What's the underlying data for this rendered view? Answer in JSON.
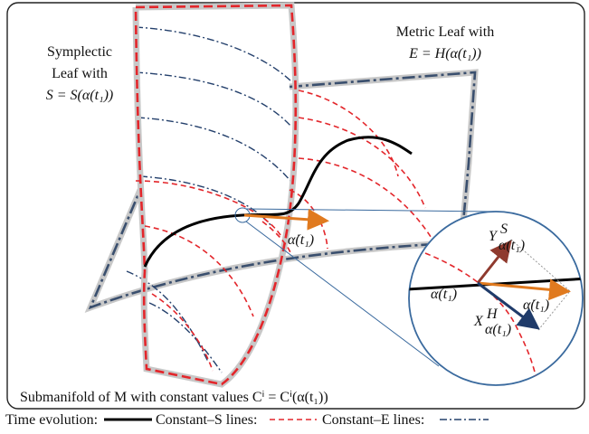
{
  "labels": {
    "symplectic_line1": "Symplectic",
    "symplectic_line2": "Leaf with",
    "symplectic_line3": "S = S(α(t₁))",
    "metric_line1": "Metric Leaf with",
    "metric_line2": "E = H(α(t₁))",
    "alpha_dot_main": "α̇(t₁)",
    "zoom_y": "Y",
    "zoom_y_sup": "S",
    "zoom_y_sub": "α(t₁)",
    "zoom_alpha": "α(t₁)",
    "zoom_alpha_dot": "α̇(t₁)",
    "zoom_x": "X",
    "zoom_x_sup": "H",
    "zoom_x_sub": "α(t₁)",
    "submanifold": "Submanifold of M with constant values Cⁱ = Cⁱ(α(t₁))"
  },
  "legend": {
    "time_evolution": "Time evolution:",
    "constant_s": "Constant–S lines:",
    "constant_e": "Constant–E lines:"
  }
}
